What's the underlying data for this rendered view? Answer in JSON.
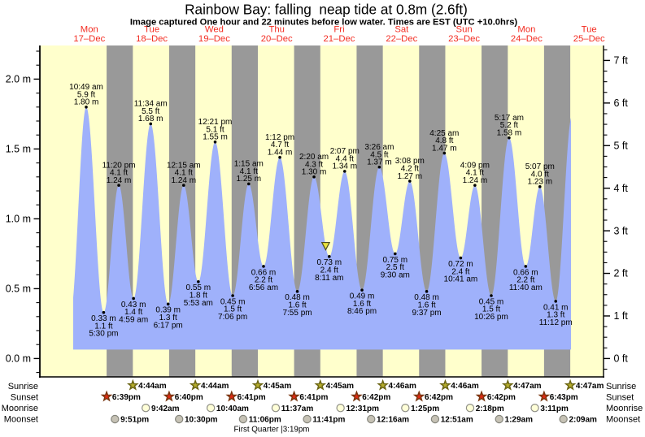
{
  "title": "Rainbow Bay: falling  neap tide at 0.8m (2.6ft)",
  "subtitle": "Image captured One hour and 22 minutes before low water. Times are EST (UTC +10.0hrs)",
  "colors": {
    "background": "#ffffff",
    "day_band": "#ffffcc",
    "night_band": "#999999",
    "tide_fill": "#9fb1fb",
    "day_label_red": "#f32b20",
    "axis_black": "#000000",
    "sunrise_star_fill": "#b5ad2c",
    "sunrise_star_stroke": "#6a6414",
    "sunset_star_fill": "#dd2a14",
    "sunset_star_stroke": "#77350f",
    "moonrise_circle_fill": "#ffffd8",
    "moonrise_circle_stroke": "#8f8f87",
    "moonset_circle_fill": "#c6c2b5",
    "moonset_circle_stroke": "#85857c",
    "now_marker_fill": "#e9e23c",
    "now_marker_stroke": "#4c4c20"
  },
  "chart_data": {
    "type": "area",
    "title": "Rainbow Bay: falling  neap tide at 0.8m (2.6ft)",
    "subtitle": "Image captured One hour and 22 minutes before low water. Times are EST (UTC +10.0hrs)",
    "x_axis": {
      "days": [
        {
          "weekday": "Mon",
          "date": "17–Dec",
          "noon_hour": 12
        },
        {
          "weekday": "Tue",
          "date": "18–Dec",
          "noon_hour": 36
        },
        {
          "weekday": "Wed",
          "date": "19–Dec",
          "noon_hour": 60
        },
        {
          "weekday": "Thu",
          "date": "20–Dec",
          "noon_hour": 84
        },
        {
          "weekday": "Fri",
          "date": "21–Dec",
          "noon_hour": 108
        },
        {
          "weekday": "Sat",
          "date": "22–Dec",
          "noon_hour": 132
        },
        {
          "weekday": "Sun",
          "date": "23–Dec",
          "noon_hour": 156
        },
        {
          "weekday": "Mon",
          "date": "24–Dec",
          "noon_hour": 180
        },
        {
          "weekday": "Tue",
          "date": "25–Dec",
          "noon_hour": 204
        }
      ]
    },
    "y_axis_left": {
      "unit": "m",
      "major_ticks": [
        {
          "label": "2.0 m",
          "value": 2.0
        },
        {
          "label": "1.5 m",
          "value": 1.5
        },
        {
          "label": "1.0 m",
          "value": 1.0
        },
        {
          "label": "0.5 m",
          "value": 0.5
        },
        {
          "label": "0.0 m",
          "value": 0.0
        }
      ],
      "minor_step": 0.1,
      "minor_max": 2.2
    },
    "y_axis_right": {
      "unit": "ft",
      "major_ticks": [
        {
          "label": "7 ft",
          "value": 7
        },
        {
          "label": "6 ft",
          "value": 6
        },
        {
          "label": "5 ft",
          "value": 5
        },
        {
          "label": "4 ft",
          "value": 4
        },
        {
          "label": "3 ft",
          "value": 3
        },
        {
          "label": "2 ft",
          "value": 2
        },
        {
          "label": "1 ft",
          "value": 1
        },
        {
          "label": "0 ft",
          "value": 0
        }
      ],
      "minor_step": 0.25,
      "minor_max": 7.25
    },
    "y_range_m": [
      -0.131,
      2.241
    ],
    "x_range_hours": [
      -7.0,
      209.6
    ],
    "curve_start_hour": 5.81,
    "curve_end_hour": 197.06,
    "curve_edge_points": [
      {
        "t": 4.6,
        "h": 0.3
      },
      {
        "t": 197.5,
        "h": 1.74
      }
    ],
    "tide_events": [
      {
        "type": "high",
        "t": 10.817,
        "h": 1.8,
        "labels": [
          "10:49 am",
          "5.9 ft",
          "1.80 m"
        ]
      },
      {
        "type": "low",
        "t": 17.5,
        "h": 0.33,
        "labels": [
          "0.33 m",
          "1.1 ft",
          "5:30 pm"
        ]
      },
      {
        "type": "high",
        "t": 23.333,
        "h": 1.24,
        "labels": [
          "11:20 pm",
          "4.1 ft",
          "1.24 m"
        ]
      },
      {
        "type": "low",
        "t": 28.983,
        "h": 0.43,
        "labels": [
          "0.43 m",
          "1.4 ft",
          "4:59 am"
        ]
      },
      {
        "type": "high",
        "t": 35.567,
        "h": 1.68,
        "labels": [
          "11:34 am",
          "5.5 ft",
          "1.68 m"
        ]
      },
      {
        "type": "low",
        "t": 42.283,
        "h": 0.39,
        "labels": [
          "0.39 m",
          "1.3 ft",
          "6:17 pm"
        ]
      },
      {
        "type": "high",
        "t": 48.25,
        "h": 1.24,
        "labels": [
          "12:15 am",
          "4.1 ft",
          "1.24 m"
        ]
      },
      {
        "type": "low",
        "t": 53.883,
        "h": 0.55,
        "labels": [
          "0.55 m",
          "1.8 ft",
          "5:53 am"
        ]
      },
      {
        "type": "high",
        "t": 60.35,
        "h": 1.55,
        "labels": [
          "12:21 pm",
          "5.1 ft",
          "1.55 m"
        ]
      },
      {
        "type": "low",
        "t": 67.1,
        "h": 0.45,
        "labels": [
          "0.45 m",
          "1.5 ft",
          "7:06 pm"
        ]
      },
      {
        "type": "high",
        "t": 73.25,
        "h": 1.25,
        "labels": [
          "1:15 am",
          "4.1 ft",
          "1.25 m"
        ]
      },
      {
        "type": "low",
        "t": 78.933,
        "h": 0.66,
        "labels": [
          "0.66 m",
          "2.2 ft",
          "6:56 am"
        ]
      },
      {
        "type": "high",
        "t": 85.2,
        "h": 1.44,
        "labels": [
          "1:12 pm",
          "4.7 ft",
          "1.44 m"
        ]
      },
      {
        "type": "low",
        "t": 91.917,
        "h": 0.48,
        "labels": [
          "0.48 m",
          "1.6 ft",
          "7:55 pm"
        ]
      },
      {
        "type": "high",
        "t": 98.333,
        "h": 1.3,
        "labels": [
          "2:20 am",
          "4.3 ft",
          "1.30 m"
        ]
      },
      {
        "type": "low",
        "t": 104.183,
        "h": 0.73,
        "labels": [
          "0.73 m",
          "2.4 ft",
          "8:11 am"
        ]
      },
      {
        "type": "high",
        "t": 110.117,
        "h": 1.34,
        "labels": [
          "2:07 pm",
          "4.4 ft",
          "1.34 m"
        ]
      },
      {
        "type": "low",
        "t": 116.767,
        "h": 0.49,
        "labels": [
          "0.49 m",
          "1.6 ft",
          "8:46 pm"
        ]
      },
      {
        "type": "high",
        "t": 123.433,
        "h": 1.37,
        "labels": [
          "3:26 am",
          "4.5 ft",
          "1.37 m"
        ]
      },
      {
        "type": "low",
        "t": 129.5,
        "h": 0.75,
        "labels": [
          "0.75 m",
          "2.5 ft",
          "9:30 am"
        ]
      },
      {
        "type": "high",
        "t": 135.133,
        "h": 1.27,
        "labels": [
          "3:08 pm",
          "4.2 ft",
          "1.27 m"
        ]
      },
      {
        "type": "low",
        "t": 141.617,
        "h": 0.48,
        "labels": [
          "0.48 m",
          "1.6 ft",
          "9:37 pm"
        ]
      },
      {
        "type": "high",
        "t": 148.417,
        "h": 1.47,
        "labels": [
          "4:25 am",
          "4.8 ft",
          "1.47 m"
        ]
      },
      {
        "type": "low",
        "t": 154.683,
        "h": 0.72,
        "labels": [
          "0.72 m",
          "2.4 ft",
          "10:41 am"
        ]
      },
      {
        "type": "high",
        "t": 160.15,
        "h": 1.24,
        "labels": [
          "4:09 pm",
          "4.1 ft",
          "1.24 m"
        ]
      },
      {
        "type": "low",
        "t": 166.433,
        "h": 0.45,
        "labels": [
          "0.45 m",
          "1.5 ft",
          "10:26 pm"
        ]
      },
      {
        "type": "high",
        "t": 173.283,
        "h": 1.58,
        "labels": [
          "5:17 am",
          "5.2 ft",
          "1.58 m"
        ]
      },
      {
        "type": "low",
        "t": 179.667,
        "h": 0.66,
        "labels": [
          "0.66 m",
          "2.2 ft",
          "11:40 am"
        ]
      },
      {
        "type": "high",
        "t": 185.117,
        "h": 1.23,
        "labels": [
          "5:07 pm",
          "4.0 ft",
          "1.23 m"
        ]
      },
      {
        "type": "low",
        "t": 191.2,
        "h": 0.41,
        "labels": [
          "0.41 m",
          "1.3 ft",
          "11:12 pm"
        ]
      }
    ],
    "now_marker": {
      "t": 102.82,
      "h": 0.805
    }
  },
  "legend": {
    "row_labels": [
      "Sunrise",
      "Sunset",
      "Moonrise",
      "Moonset"
    ],
    "sunrise": [
      {
        "time": "4:44am",
        "t": 28.733
      },
      {
        "time": "4:44am",
        "t": 52.733
      },
      {
        "time": "4:45am",
        "t": 76.75
      },
      {
        "time": "4:45am",
        "t": 100.75
      },
      {
        "time": "4:46am",
        "t": 124.767
      },
      {
        "time": "4:46am",
        "t": 148.767
      },
      {
        "time": "4:47am",
        "t": 172.783
      },
      {
        "time": "4:47am",
        "t": 196.783
      }
    ],
    "sunset": [
      {
        "time": "6:39pm",
        "t": 18.65
      },
      {
        "time": "6:40pm",
        "t": 42.667
      },
      {
        "time": "6:41pm",
        "t": 66.683
      },
      {
        "time": "6:41pm",
        "t": 90.683
      },
      {
        "time": "6:42pm",
        "t": 114.7
      },
      {
        "time": "6:42pm",
        "t": 138.7
      },
      {
        "time": "6:42pm",
        "t": 162.7
      },
      {
        "time": "6:43pm",
        "t": 186.717
      }
    ],
    "moonrise": [
      {
        "time": "9:42am",
        "t": 33.7
      },
      {
        "time": "10:40am",
        "t": 58.667
      },
      {
        "time": "11:37am",
        "t": 83.617
      },
      {
        "time": "12:31pm",
        "t": 108.517
      },
      {
        "time": "1:25pm",
        "t": 133.417
      },
      {
        "time": "2:18pm",
        "t": 158.3
      },
      {
        "time": "3:11pm",
        "t": 183.183
      }
    ],
    "moonset": [
      {
        "time": "9:51pm",
        "t": 21.85
      },
      {
        "time": "10:30pm",
        "t": 46.5
      },
      {
        "time": "11:06pm",
        "t": 71.1
      },
      {
        "time": "11:41pm",
        "t": 95.683
      },
      {
        "time": "12:16am",
        "t": 120.267
      },
      {
        "time": "12:51am",
        "t": 144.85
      },
      {
        "time": "1:29am",
        "t": 169.483
      },
      {
        "time": "2:09am",
        "t": 194.15
      }
    ],
    "moon_phase": {
      "text": "First Quarter |3:19pm",
      "t": 87.317
    }
  }
}
